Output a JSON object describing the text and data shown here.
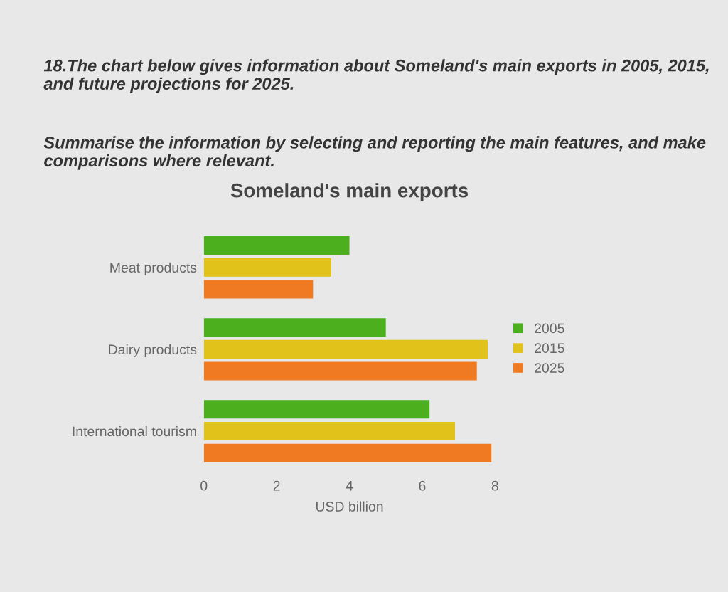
{
  "chart_data": {
    "type": "bar",
    "orientation": "horizontal",
    "title": "Someland's main exports",
    "xlabel": "USD billion",
    "annotations": [
      "18.The chart below gives information about Someland's main exports in 2005, 2015, and future projections for 2025.",
      "Summarise the information by selecting and reporting the main features, and make comparisons where relevant."
    ],
    "categories": [
      "Meat products",
      "Dairy products",
      "International tourism"
    ],
    "series": [
      {
        "name": "2005",
        "color": "#4caf1e",
        "values": [
          4,
          5,
          6.2
        ]
      },
      {
        "name": "2015",
        "color": "#e0c21a",
        "values": [
          3.5,
          7.8,
          6.9
        ]
      },
      {
        "name": "2025",
        "color": "#f07a22",
        "values": [
          3,
          7.5,
          7.9
        ]
      }
    ],
    "xlim": [
      0,
      8
    ],
    "xticks": [
      0,
      2,
      4,
      6,
      8
    ],
    "legend": "right",
    "grid": false
  }
}
